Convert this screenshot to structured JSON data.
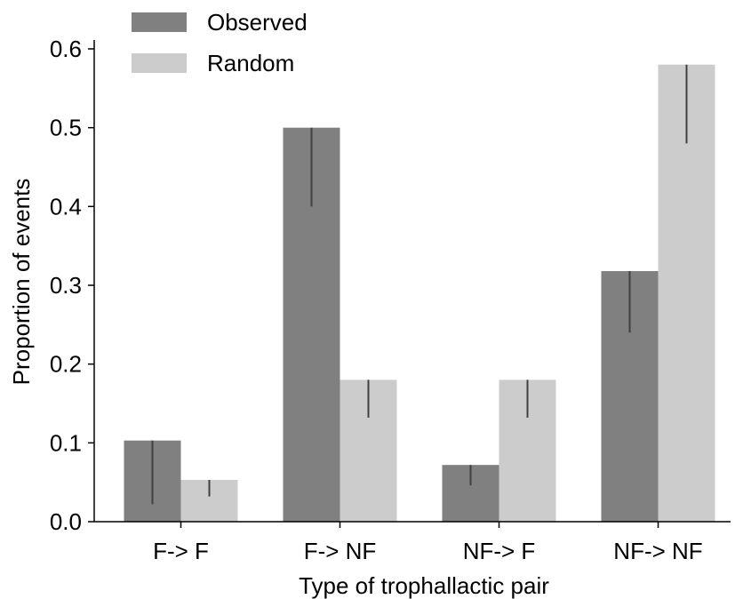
{
  "chart_data": {
    "type": "bar",
    "xlabel": "Type of trophallactic pair",
    "ylabel": "Proportion of events",
    "categories": [
      "F-> F",
      "F-> NF",
      "NF-> F",
      "NF-> NF"
    ],
    "ylim": [
      0,
      0.6
    ],
    "yticks": [
      "0.0",
      "0.1",
      "0.2",
      "0.3",
      "0.4",
      "0.5",
      "0.6"
    ],
    "series": [
      {
        "name": "Observed",
        "color": "#808080",
        "values": [
          0.103,
          0.5,
          0.072,
          0.318
        ],
        "error_bars": [
          [
            0.022,
            0.103
          ],
          [
            0.4,
            0.5
          ],
          [
            0.046,
            0.072
          ],
          [
            0.24,
            0.318
          ]
        ]
      },
      {
        "name": "Random",
        "color": "#cccccc",
        "values": [
          0.053,
          0.18,
          0.18,
          0.58
        ],
        "error_bars": [
          [
            0.032,
            0.053
          ],
          [
            0.132,
            0.18
          ],
          [
            0.132,
            0.18
          ],
          [
            0.48,
            0.58
          ]
        ]
      }
    ],
    "legend_position": "top-left",
    "grid": false
  }
}
